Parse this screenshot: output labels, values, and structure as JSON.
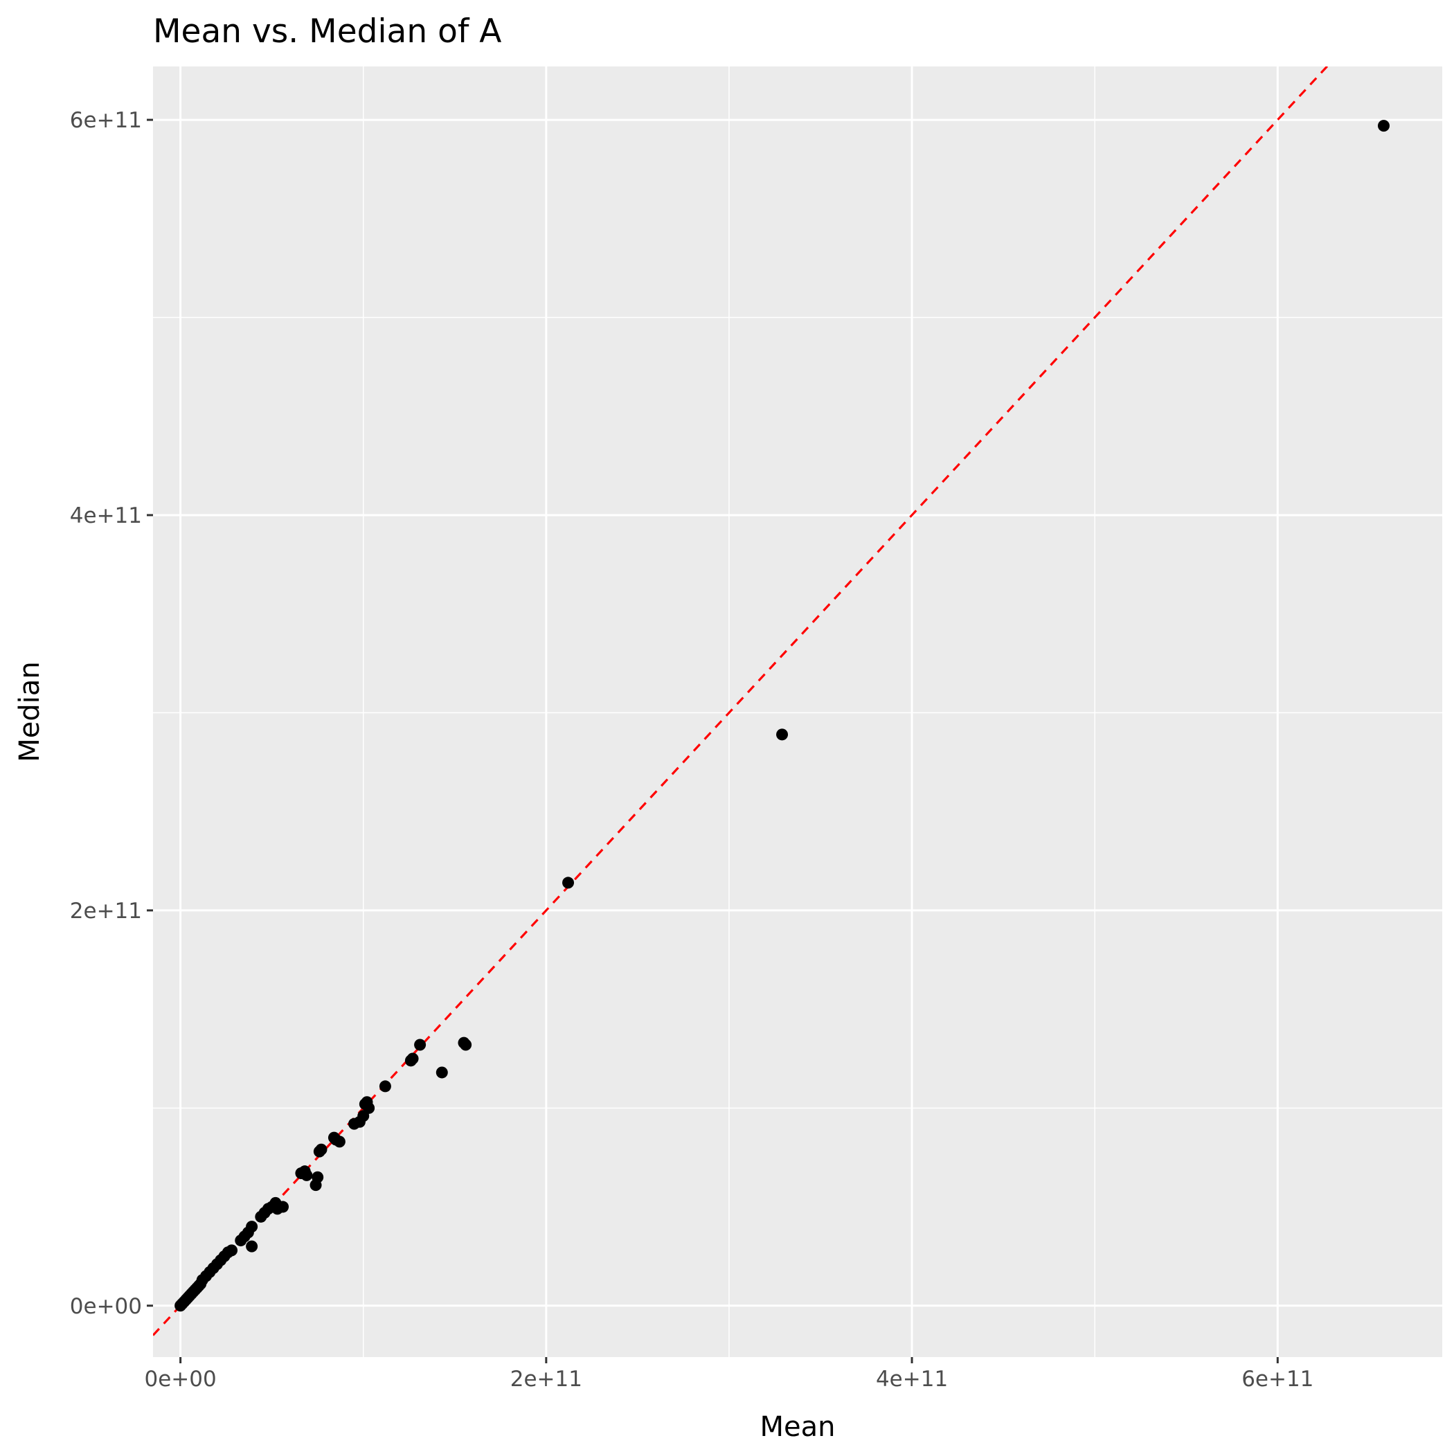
{
  "chart_data": {
    "type": "scatter",
    "title": "Mean vs. Median of A",
    "xlabel": "Mean",
    "ylabel": "Median",
    "xlim": [
      -15000000000,
      690000000000
    ],
    "ylim": [
      -26000000000,
      627000000000
    ],
    "x_ticks": [
      {
        "value": 0,
        "label": "0e+00"
      },
      {
        "value": 200000000000,
        "label": "2e+11"
      },
      {
        "value": 400000000000,
        "label": "4e+11"
      },
      {
        "value": 600000000000,
        "label": "6e+11"
      }
    ],
    "y_ticks": [
      {
        "value": 0,
        "label": "0e+00"
      },
      {
        "value": 200000000000,
        "label": "2e+11"
      },
      {
        "value": 400000000000,
        "label": "4e+11"
      },
      {
        "value": 600000000000,
        "label": "6e+11"
      }
    ],
    "minor_breaks_x": [
      100000000000,
      300000000000,
      500000000000
    ],
    "minor_breaks_y": [
      100000000000,
      300000000000,
      500000000000
    ],
    "grid": true,
    "panel_background": "#ebebeb",
    "point_color": "#000000",
    "reference_line": {
      "slope": 1,
      "intercept": 0,
      "style": "dashed",
      "color": "#ff0000"
    },
    "x": [
      0,
      1000000000,
      2000000000,
      3000000000,
      4000000000,
      5000000000,
      6000000000,
      7000000000,
      8000000000,
      9000000000,
      10000000000,
      11000000000,
      12000000000,
      14000000000,
      16000000000,
      18000000000,
      20000000000,
      22000000000,
      24000000000,
      26000000000,
      28000000000,
      33000000000,
      35000000000,
      37000000000,
      39000000000,
      39000000000,
      44000000000,
      46000000000,
      48000000000,
      50000000000,
      52000000000,
      53000000000,
      56000000000,
      66000000000,
      68000000000,
      69000000000,
      74000000000,
      75000000000,
      76000000000,
      77000000000,
      84000000000,
      85000000000,
      87000000000,
      95000000000,
      98000000000,
      100000000000,
      101000000000,
      102000000000,
      103000000000,
      112000000000,
      126000000000,
      127000000000,
      131000000000,
      143000000000,
      155000000000,
      156000000000,
      212000000000,
      329000000000,
      658000000000
    ],
    "y": [
      0,
      1000000000,
      2000000000,
      3000000000,
      4000000000,
      5000000000,
      6000000000,
      7000000000,
      8000000000,
      9000000000,
      10000000000,
      11000000000,
      13000000000,
      15000000000,
      17000000000,
      19000000000,
      21000000000,
      23000000000,
      25000000000,
      27000000000,
      28000000000,
      33000000000,
      35000000000,
      37000000000,
      30000000000,
      40000000000,
      45000000000,
      47000000000,
      49000000000,
      50000000000,
      52000000000,
      49000000000,
      50000000000,
      67000000000,
      68000000000,
      66000000000,
      61000000000,
      65000000000,
      78000000000,
      79000000000,
      85000000000,
      84000000000,
      83000000000,
      92000000000,
      93000000000,
      96000000000,
      102000000000,
      103000000000,
      100000000000,
      111000000000,
      124000000000,
      125000000000,
      132000000000,
      118000000000,
      133000000000,
      132000000000,
      214000000000,
      289000000000,
      597000000000
    ]
  }
}
